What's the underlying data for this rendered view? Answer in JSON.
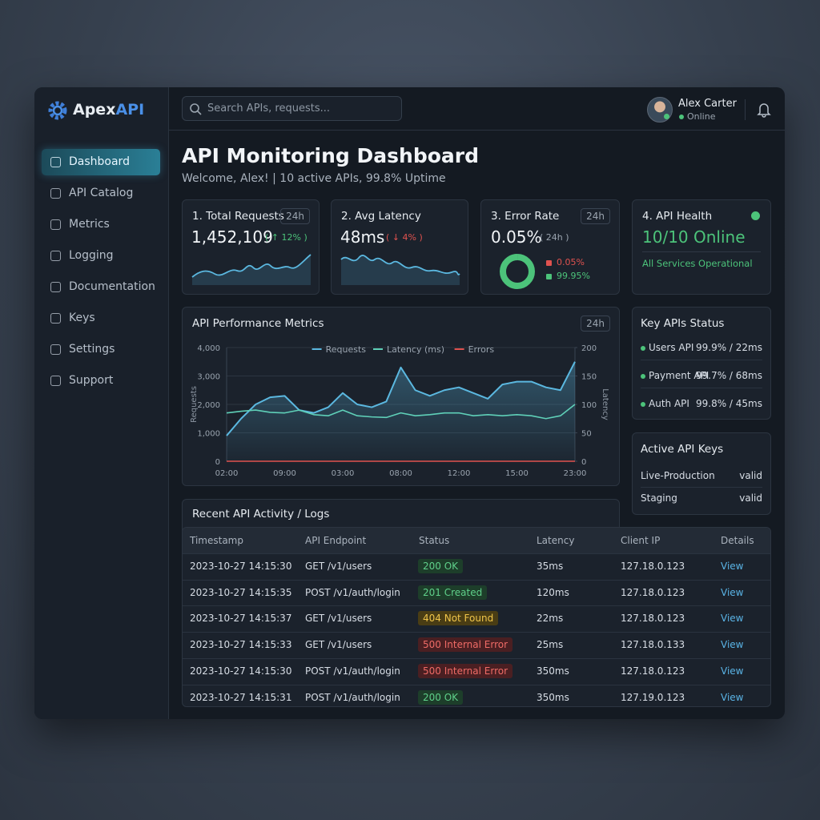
{
  "brand": {
    "part_a": "Apex",
    "part_b": "API"
  },
  "search_placeholder": "Search APIs, requests...",
  "user": {
    "name": "Alex Carter",
    "status": "Online"
  },
  "nav": [
    "Dashboard",
    "API Catalog",
    "Metrics",
    "Logging",
    "Documentation",
    "Keys",
    "Settings",
    "Support"
  ],
  "page": {
    "title": "API Monitoring Dashboard",
    "subtitle": "Welcome, Alex! | 10 active APIs, 99.8% Uptime"
  },
  "cards": [
    {
      "title": "1. Total Requests",
      "badge": "24h",
      "value": "1,452,109",
      "change": "( ↑ 12% )"
    },
    {
      "title": "2. Avg Latency",
      "value": "48ms",
      "change": "( ↓ 4% )"
    },
    {
      "title": "3. Error Rate",
      "badge": "24h",
      "value": "0.05%",
      "period": "( 24h )",
      "donut": {
        "values": [
          0.05,
          99.95
        ],
        "value_labels": [
          "0.05%",
          "99.95%"
        ],
        "colors": [
          "#e0524f",
          "#4cc37a"
        ]
      }
    },
    {
      "title": "4. API Health",
      "value": "10/10 Online",
      "note": "All Services Operational"
    }
  ],
  "chart_data": {
    "type": "line",
    "title": "API Performance Metrics",
    "badge": "24h",
    "y_label": "Requests",
    "y2_label": "Latency",
    "legend": "top",
    "grid": true,
    "categories": [
      "02:00",
      null,
      null,
      null,
      "09:00",
      null,
      null,
      null,
      "03:00",
      null,
      null,
      null,
      "08:00",
      null,
      null,
      null,
      "12:00",
      null,
      null,
      null,
      "15:00",
      null,
      null,
      null,
      "23:00"
    ],
    "ylim": [
      0,
      4000
    ],
    "yticks": [
      0,
      {
        "value": 1000,
        "label": "1,000"
      },
      {
        "value": 2000,
        "label": "2,000"
      },
      {
        "value": 3000,
        "label": "3,000"
      },
      {
        "value": 4000,
        "label": "4,000"
      }
    ],
    "y2lim": [
      0,
      200
    ],
    "y2ticks": [
      0,
      50,
      100,
      150,
      200
    ],
    "series": [
      {
        "name": "Requests",
        "color": "#5bb8e0",
        "values": [
          900,
          1500,
          2000,
          2250,
          2300,
          1800,
          1700,
          1900,
          2400,
          2000,
          1900,
          2100,
          3300,
          2500,
          2300,
          2500,
          2600,
          2400,
          2200,
          2700,
          2800,
          2800,
          2600,
          2500,
          3500
        ]
      },
      {
        "name": "Latency (ms)",
        "color": "#5fd0b8",
        "axis": "y2",
        "values": [
          85,
          88,
          90,
          86,
          85,
          90,
          82,
          80,
          90,
          80,
          78,
          77,
          85,
          80,
          82,
          85,
          85,
          80,
          82,
          80,
          82,
          80,
          75,
          80,
          100
        ]
      },
      {
        "name": "Errors",
        "color": "#e0524f",
        "values": [
          0,
          0,
          0,
          0,
          0,
          0,
          0,
          0,
          0,
          0,
          0,
          0,
          0,
          0,
          0,
          0,
          0,
          0,
          0,
          0,
          0,
          0,
          0,
          0,
          0
        ]
      }
    ]
  },
  "status": {
    "title": "Key APIs Status",
    "items": [
      {
        "name": "Users API",
        "value": "99.9% / 22ms"
      },
      {
        "name": "Payment API",
        "value": "99.7% / 68ms"
      },
      {
        "name": "Auth API",
        "value": "99.8% / 45ms"
      }
    ]
  },
  "keys": {
    "title": "Active API Keys",
    "items": [
      {
        "name": "Live-Production",
        "status": "valid"
      },
      {
        "name": "Staging",
        "status": "valid"
      }
    ]
  },
  "table": {
    "title": "Recent API Activity / Logs",
    "columns": [
      "Timestamp",
      "API Endpoint",
      "Status",
      "Latency",
      "Client IP",
      "Details"
    ],
    "rows": [
      [
        "2023-10-27 14:15:30",
        "GET /v1/users",
        "200 OK",
        "35ms",
        "127.18.0.123",
        "View"
      ],
      [
        "2023-10-27 14:15:35",
        "POST /v1/auth/login",
        "201 Created",
        "120ms",
        "127.18.0.123",
        "View"
      ],
      [
        "2023-10-27 14:15:37",
        "GET /v1/users",
        "404 Not Found",
        "22ms",
        "127.18.0.123",
        "View"
      ],
      [
        "2023-10-27 14:15:33",
        "GET /v1/users",
        "500 Internal Error",
        "25ms",
        "127.18.0.133",
        "View"
      ],
      [
        "2023-10-27 14:15:30",
        "POST /v1/auth/login",
        "500 Internal Error",
        "350ms",
        "127.18.0.123",
        "View"
      ],
      [
        "2023-10-27 14:15:31",
        "POST /v1/auth/login",
        "200 OK",
        "350ms",
        "127.19.0.123",
        "View"
      ]
    ]
  }
}
